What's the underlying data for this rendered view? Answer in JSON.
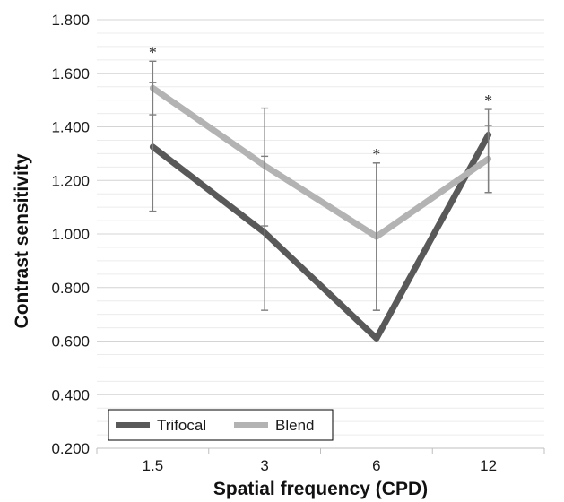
{
  "chart_data": {
    "type": "line",
    "title": "",
    "xlabel": "Spatial frequency (CPD)",
    "ylabel": "Contrast sensitivity",
    "categories": [
      "1.5",
      "3",
      "6",
      "12"
    ],
    "ylim": [
      0.2,
      1.8
    ],
    "yticks": [
      "0.200",
      "0.400",
      "0.600",
      "0.800",
      "1.000",
      "1.200",
      "1.400",
      "1.600",
      "1.800"
    ],
    "y_minor_step": 0.05,
    "grid": true,
    "legend_position": "bottom-left",
    "series": [
      {
        "name": "Trifocal",
        "color": "#595959",
        "values": [
          1.325,
          1.005,
          0.61,
          1.37
        ],
        "error_low": [
          1.085,
          0.715,
          0.715,
          1.155
        ],
        "error_high": [
          1.565,
          1.29,
          1.265,
          1.465
        ]
      },
      {
        "name": "Blend",
        "color": "#b3b3b3",
        "values": [
          1.545,
          1.255,
          0.99,
          1.28
        ],
        "error_low": [
          1.445,
          1.03,
          0.715,
          1.155
        ],
        "error_high": [
          1.645,
          1.47,
          1.265,
          1.405
        ]
      }
    ],
    "significance": [
      {
        "category": "1.5",
        "label": "*",
        "y": 1.645
      },
      {
        "category": "6",
        "label": "*",
        "y": 1.265
      },
      {
        "category": "12",
        "label": "*",
        "y": 1.465
      }
    ]
  }
}
